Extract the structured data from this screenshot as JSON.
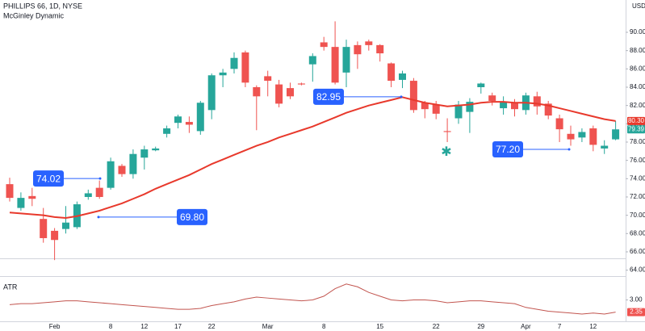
{
  "chart_data": [
    {
      "type": "candlestick",
      "title": "PHILLIPS 66, 1D, NYSE",
      "unit": "USD",
      "categories": [
        null,
        null,
        null,
        null,
        "Feb",
        null,
        null,
        null,
        null,
        "8",
        null,
        null,
        "12",
        null,
        null,
        "17",
        null,
        null,
        "22",
        null,
        null,
        null,
        null,
        "Mar",
        null,
        null,
        null,
        null,
        "8",
        null,
        null,
        null,
        null,
        "15",
        null,
        null,
        null,
        null,
        "22",
        null,
        null,
        null,
        "29",
        null,
        null,
        null,
        "Apr",
        null,
        null,
        "7",
        null,
        null,
        "12",
        null,
        null
      ],
      "open": [
        73.4,
        70.8,
        72.1,
        69.6,
        68.3,
        68.5,
        68.7,
        72.0,
        73.0,
        73.0,
        75.4,
        74.5,
        76.3,
        77.1,
        78.9,
        80.1,
        80.2,
        79.2,
        81.5,
        85.3,
        86.0,
        87.8,
        84.0,
        85.2,
        84.3,
        83.9,
        84.4,
        86.5,
        88.9,
        88.4,
        85.6,
        88.6,
        89.0,
        88.6,
        86.6,
        84.8,
        84.7,
        82.3,
        82.1,
        79.2,
        80.6,
        81.3,
        84.0,
        83.1,
        81.7,
        82.3,
        81.5,
        83.0,
        82.2,
        80.6,
        78.9,
        78.5,
        79.5,
        77.3,
        78.3
      ],
      "high": [
        74.1,
        72.5,
        73.0,
        70.8,
        68.6,
        71.0,
        71.5,
        72.8,
        73.8,
        76.3,
        75.6,
        77.2,
        77.6,
        77.5,
        79.8,
        81.0,
        80.8,
        82.5,
        85.5,
        86.0,
        87.8,
        88.0,
        84.2,
        85.8,
        84.8,
        84.5,
        84.5,
        87.7,
        89.5,
        91.2,
        89.2,
        89.0,
        89.2,
        88.7,
        86.7,
        85.8,
        85.0,
        82.5,
        82.5,
        80.6,
        82.5,
        82.8,
        84.5,
        83.4,
        83.0,
        82.7,
        83.4,
        83.5,
        82.5,
        81.0,
        79.8,
        79.5,
        79.8,
        78.2,
        80.3
      ],
      "low": [
        71.5,
        70.5,
        71.0,
        67.0,
        65.1,
        68.0,
        68.5,
        71.7,
        71.8,
        72.8,
        74.2,
        74.0,
        75.0,
        77.0,
        78.5,
        79.5,
        79.0,
        78.8,
        80.5,
        84.0,
        85.5,
        84.0,
        79.3,
        83.0,
        81.8,
        82.7,
        84.2,
        84.6,
        88.0,
        84.3,
        84.0,
        86.0,
        88.0,
        86.8,
        84.0,
        83.9,
        81.2,
        80.6,
        80.5,
        78.0,
        80.0,
        79.0,
        83.3,
        82.0,
        81.0,
        80.8,
        81.0,
        81.0,
        80.5,
        78.0,
        77.6,
        78.0,
        77.0,
        76.7,
        78.2
      ],
      "close": [
        71.9,
        71.9,
        71.8,
        67.5,
        67.3,
        69.2,
        71.2,
        72.4,
        72.0,
        75.9,
        74.5,
        76.7,
        77.2,
        77.3,
        79.5,
        80.8,
        79.9,
        82.3,
        85.3,
        85.6,
        87.2,
        84.5,
        83.0,
        84.7,
        82.2,
        83.0,
        84.3,
        87.4,
        88.4,
        84.5,
        88.4,
        87.6,
        88.6,
        87.7,
        84.7,
        85.5,
        81.5,
        81.6,
        81.1,
        79.1,
        82.1,
        82.4,
        84.4,
        82.5,
        82.4,
        81.6,
        83.1,
        81.9,
        80.9,
        79.4,
        78.3,
        79.1,
        77.7,
        77.6,
        79.39
      ],
      "up_color": "#26a69a",
      "down_color": "#ef5350",
      "series": [
        {
          "name": "McGinley Dynamic",
          "color": "#e8392c",
          "values": [
            70.3,
            70.2,
            70.1,
            70.0,
            69.8,
            69.7,
            69.9,
            70.2,
            70.5,
            70.9,
            71.3,
            71.8,
            72.3,
            72.9,
            73.4,
            73.9,
            74.4,
            75.0,
            75.6,
            76.1,
            76.6,
            77.1,
            77.6,
            78.0,
            78.5,
            78.9,
            79.3,
            79.7,
            80.2,
            80.7,
            81.2,
            81.6,
            82.0,
            82.3,
            82.6,
            82.9,
            82.6,
            82.3,
            82.1,
            81.9,
            82.0,
            82.1,
            82.3,
            82.4,
            82.4,
            82.3,
            82.3,
            82.2,
            82.0,
            81.7,
            81.4,
            81.1,
            80.8,
            80.5,
            80.3
          ],
          "last_value_label": "80.30"
        }
      ],
      "annotations": [
        {
          "value": 74.02,
          "label": "74.02"
        },
        {
          "value": 69.8,
          "label": "69.80"
        },
        {
          "value": 82.95,
          "label": "82.95"
        },
        {
          "value": 77.2,
          "label": "77.20"
        }
      ],
      "ylim": [
        63.35,
        93.53
      ],
      "yticks": [
        {
          "value": 64,
          "label": "64.00"
        },
        {
          "value": 66,
          "label": "66.00"
        },
        {
          "value": 68,
          "label": "68.00"
        },
        {
          "value": 70,
          "label": "70.00"
        },
        {
          "value": 72,
          "label": "72.00"
        },
        {
          "value": 74,
          "label": "74.00"
        },
        {
          "value": 76,
          "label": "76.00"
        },
        {
          "value": 78,
          "label": "78.00"
        },
        {
          "value": 80,
          "label": "80.00"
        },
        {
          "value": 82,
          "label": "82.00"
        },
        {
          "value": 84,
          "label": "84.00"
        },
        {
          "value": 86,
          "label": "86.00"
        },
        {
          "value": 88,
          "label": "88.00"
        },
        {
          "value": 90,
          "label": "90.00"
        }
      ]
    },
    {
      "type": "line",
      "title": "ATR",
      "series": [
        {
          "name": "ATR",
          "color": "#c2554f",
          "values": [
            2.75,
            2.8,
            2.8,
            2.85,
            2.9,
            2.95,
            2.95,
            2.9,
            2.85,
            2.8,
            2.75,
            2.7,
            2.65,
            2.6,
            2.55,
            2.5,
            2.5,
            2.55,
            2.7,
            2.8,
            2.9,
            3.05,
            3.15,
            3.1,
            3.05,
            3.0,
            2.95,
            3.0,
            3.2,
            3.6,
            3.85,
            3.7,
            3.4,
            3.2,
            3.0,
            2.95,
            3.0,
            3.0,
            2.95,
            2.85,
            2.9,
            2.95,
            2.95,
            2.9,
            2.85,
            2.8,
            2.6,
            2.5,
            2.4,
            2.35,
            2.3,
            2.25,
            2.3,
            2.25,
            2.35
          ]
        }
      ],
      "ylim": [
        1.86,
        4.27
      ],
      "yticks": [
        {
          "value": 3,
          "label": "3.00"
        }
      ]
    }
  ]
}
